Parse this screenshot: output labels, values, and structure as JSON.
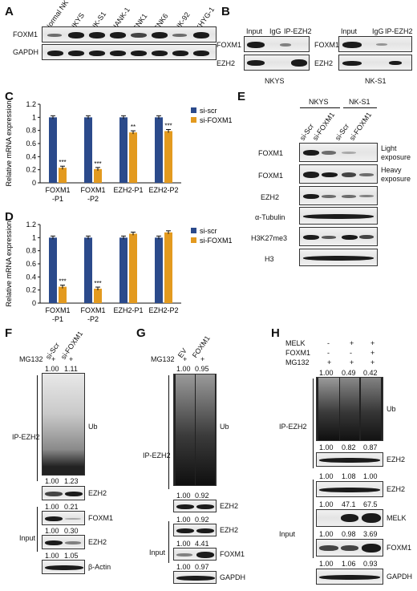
{
  "panels": {
    "A": {
      "letter": "A",
      "lanes": [
        "Normal NK",
        "NKYS",
        "NK-S1",
        "HANK-1",
        "SNK1",
        "SNK6",
        "NK-92",
        "KHYG-1"
      ],
      "rows": [
        "FOXM1",
        "GAPDH"
      ]
    },
    "B": {
      "letter": "B",
      "lanes": [
        "Input",
        "IgG",
        "IP-EZH2"
      ],
      "rows": [
        "FOXM1",
        "EZH2"
      ],
      "cells": [
        "NKYS",
        "NK-S1"
      ]
    },
    "C": {
      "letter": "C"
    },
    "D": {
      "letter": "D"
    },
    "E": {
      "letter": "E",
      "cells": [
        "NKYS",
        "NK-S1"
      ],
      "lanes": [
        "si-Scr",
        "si-FOXM1",
        "si-Scr",
        "si-FOXM1"
      ],
      "rows": [
        "FOXM1",
        "FOXM1",
        "EZH2",
        "α-Tubulin",
        "H3K27me3",
        "H3"
      ],
      "notes": [
        "Light",
        "exposure",
        "Heavy",
        "exposure"
      ]
    },
    "F": {
      "letter": "F",
      "lanes": [
        "si-Scr",
        "si-FOXM1"
      ],
      "mg132": "MG132",
      "plus": [
        "+",
        "+"
      ],
      "ub_vals": [
        "1.00",
        "1.11"
      ],
      "ezh2_vals": [
        "1.00",
        "1.23"
      ],
      "foxm1_vals": [
        "1.00",
        "0.21"
      ],
      "ezh2in_vals": [
        "1.00",
        "0.30"
      ],
      "actin_vals": [
        "1.00",
        "1.05"
      ],
      "ub": "Ub",
      "ip": "IP-EZH2",
      "input": "Input",
      "rows": [
        "EZH2",
        "FOXM1",
        "EZH2",
        "β-Actin"
      ]
    },
    "G": {
      "letter": "G",
      "lanes": [
        "EV",
        "FOXM1"
      ],
      "mg132": "MG132",
      "plus": [
        "+",
        "+"
      ],
      "ub_vals": [
        "1.00",
        "0.95"
      ],
      "ezh2_vals": [
        "1.00",
        "0.92"
      ],
      "ezh2in_vals": [
        "1.00",
        "0.92"
      ],
      "foxm1_vals": [
        "1.00",
        "4.41"
      ],
      "gapdh_vals": [
        "1.00",
        "0.97"
      ],
      "ub": "Ub",
      "ip": "IP-EZH2",
      "input": "Input",
      "rows": [
        "EZH2",
        "EZH2",
        "FOXM1",
        "GAPDH"
      ]
    },
    "H": {
      "letter": "H",
      "conds": [
        "MELK",
        "FOXM1",
        "MG132"
      ],
      "signs": [
        [
          "-",
          "+",
          "+"
        ],
        [
          "-",
          "-",
          "+"
        ],
        [
          "+",
          "+",
          "+"
        ]
      ],
      "ub_vals": [
        "1.00",
        "0.49",
        "0.42"
      ],
      "ezh2_vals": [
        "1.00",
        "0.82",
        "0.87"
      ],
      "ezh2in_vals": [
        "1.00",
        "1.08",
        "1.00"
      ],
      "melk_vals": [
        "1.00",
        "47.1",
        "67.5"
      ],
      "foxm1_vals": [
        "1.00",
        "0.98",
        "3.69"
      ],
      "gapdh_vals": [
        "1.00",
        "1.06",
        "0.93"
      ],
      "ub": "Ub",
      "ip": "IP-EZH2",
      "input": "Input",
      "rows": [
        "EZH2",
        "EZH2",
        "MELK",
        "FOXM1",
        "GAPDH"
      ]
    }
  },
  "chart_data": [
    {
      "type": "bar",
      "panel": "C",
      "categories": [
        "FOXM1-P1",
        "FOXM1-P2",
        "EZH2-P1",
        "EZH2-P2"
      ],
      "tick_lines": [
        [
          "FOXM1",
          "-P1"
        ],
        [
          "FOXM1",
          "-P2"
        ],
        [
          "EZH2-P1",
          ""
        ],
        [
          "EZH2-P2",
          ""
        ]
      ],
      "series": [
        {
          "name": "si-scr",
          "color": "#2b4a8b",
          "values": [
            1.0,
            1.0,
            1.0,
            1.0
          ]
        },
        {
          "name": "si-FOXM1",
          "color": "#e39a1f",
          "values": [
            0.23,
            0.21,
            0.77,
            0.79
          ]
        }
      ],
      "stars": [
        "***",
        "***",
        "**",
        "***"
      ],
      "ylabel": "Relative mRNA expression",
      "ylim": [
        0,
        1.2
      ],
      "yticks": [
        "0",
        "0.2",
        "0.4",
        "0.6",
        "0.8",
        "1",
        "1.2"
      ],
      "legend": "top-right"
    },
    {
      "type": "bar",
      "panel": "D",
      "categories": [
        "FOXM1-P1",
        "FOXM1-P2",
        "EZH2-P1",
        "EZH2-P2"
      ],
      "tick_lines": [
        [
          "FOXM1",
          "-P1"
        ],
        [
          "FOXM1",
          "-P2"
        ],
        [
          "EZH2-P1",
          ""
        ],
        [
          "EZH2-P2",
          ""
        ]
      ],
      "series": [
        {
          "name": "si-scr",
          "color": "#2b4a8b",
          "values": [
            1.0,
            1.0,
            1.0,
            1.0
          ]
        },
        {
          "name": "si-FOXM1",
          "color": "#e39a1f",
          "values": [
            0.25,
            0.22,
            1.06,
            1.08
          ]
        }
      ],
      "stars": [
        "***",
        "***",
        "",
        ""
      ],
      "ylabel": "Relative mRNA expression",
      "ylim": [
        0,
        1.2
      ],
      "yticks": [
        "0",
        "0.2",
        "0.4",
        "0.6",
        "0.8",
        "1",
        "1.2"
      ],
      "legend": "top-right"
    }
  ]
}
